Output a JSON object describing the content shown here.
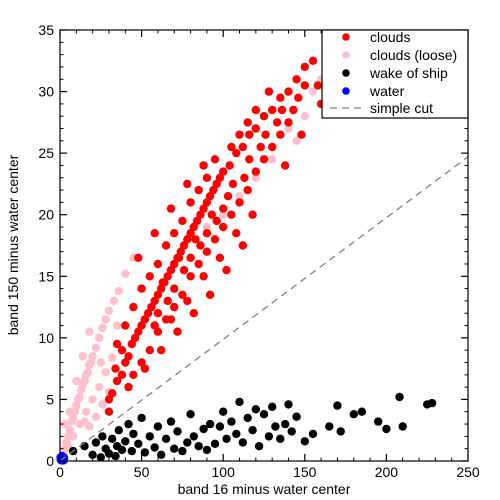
{
  "chart_data": {
    "type": "scatter",
    "xlabel": "band 16 minus water center",
    "ylabel": "band 150 minus water center",
    "xlim": [
      0,
      250
    ],
    "ylim": [
      0,
      35
    ],
    "xticks": [
      0,
      50,
      100,
      150,
      200,
      250
    ],
    "yticks": [
      0,
      5,
      10,
      15,
      20,
      25,
      30,
      35
    ],
    "legend_position": "top-right",
    "legend": [
      "clouds",
      "clouds (loose)",
      "wake of ship",
      "water",
      "simple cut"
    ],
    "series": [
      {
        "name": "clouds (loose)",
        "color": "#ffc0cb",
        "points": [
          [
            2,
            0.5
          ],
          [
            3,
            1.0
          ],
          [
            4,
            1.5
          ],
          [
            5,
            2.0
          ],
          [
            6,
            2.5
          ],
          [
            7,
            3.2
          ],
          [
            8,
            3.5
          ],
          [
            9,
            4.0
          ],
          [
            10,
            4.5
          ],
          [
            11,
            5.0
          ],
          [
            12,
            5.2
          ],
          [
            13,
            5.8
          ],
          [
            14,
            6.2
          ],
          [
            15,
            6.5
          ],
          [
            16,
            7.0
          ],
          [
            17,
            7.2
          ],
          [
            18,
            7.8
          ],
          [
            19,
            8.0
          ],
          [
            20,
            8.5
          ],
          [
            22,
            9.2
          ],
          [
            24,
            10.0
          ],
          [
            26,
            10.8
          ],
          [
            28,
            11.5
          ],
          [
            30,
            12.2
          ],
          [
            33,
            13.0
          ],
          [
            36,
            13.8
          ],
          [
            40,
            15.2
          ],
          [
            45,
            16.5
          ],
          [
            5,
            1.2
          ],
          [
            8,
            2.0
          ],
          [
            12,
            3.0
          ],
          [
            16,
            4.0
          ],
          [
            20,
            5.0
          ],
          [
            24,
            6.0
          ],
          [
            28,
            7.2
          ],
          [
            32,
            8.4
          ],
          [
            18,
            2.8
          ],
          [
            22,
            3.6
          ],
          [
            26,
            4.6
          ],
          [
            30,
            5.6
          ],
          [
            6,
            4.0
          ],
          [
            10,
            6.5
          ],
          [
            14,
            8.5
          ],
          [
            18,
            10.5
          ],
          [
            3,
            3.0
          ],
          [
            15,
            3.2
          ],
          [
            25,
            8.0
          ],
          [
            35,
            11.0
          ],
          [
            100,
            20.0
          ],
          [
            120,
            23.0
          ],
          [
            140,
            27.0
          ],
          [
            150,
            28.0
          ],
          [
            145,
            26.0
          ],
          [
            155,
            30.0
          ],
          [
            160,
            31.0
          ],
          [
            130,
            24.5
          ],
          [
            110,
            21.5
          ],
          [
            90,
            19.0
          ]
        ]
      },
      {
        "name": "clouds",
        "color": "#ff0000",
        "points": [
          [
            30,
            4.0
          ],
          [
            32,
            5.5
          ],
          [
            35,
            6.5
          ],
          [
            38,
            7.0
          ],
          [
            40,
            8.0
          ],
          [
            42,
            8.5
          ],
          [
            44,
            9.5
          ],
          [
            46,
            10.0
          ],
          [
            48,
            10.5
          ],
          [
            50,
            11.0
          ],
          [
            52,
            11.5
          ],
          [
            54,
            12.0
          ],
          [
            56,
            12.5
          ],
          [
            58,
            13.0
          ],
          [
            60,
            13.5
          ],
          [
            62,
            14.0
          ],
          [
            64,
            14.5
          ],
          [
            66,
            15.0
          ],
          [
            68,
            15.5
          ],
          [
            70,
            16.0
          ],
          [
            72,
            16.5
          ],
          [
            74,
            17.0
          ],
          [
            76,
            17.5
          ],
          [
            78,
            18.0
          ],
          [
            80,
            18.5
          ],
          [
            82,
            19.0
          ],
          [
            84,
            19.5
          ],
          [
            86,
            20.0
          ],
          [
            88,
            20.5
          ],
          [
            90,
            21.0
          ],
          [
            92,
            21.5
          ],
          [
            94,
            22.0
          ],
          [
            96,
            22.5
          ],
          [
            98,
            23.0
          ],
          [
            100,
            23.5
          ],
          [
            104,
            24.0
          ],
          [
            108,
            25.0
          ],
          [
            112,
            25.5
          ],
          [
            116,
            26.5
          ],
          [
            120,
            27.0
          ],
          [
            125,
            28.0
          ],
          [
            130,
            28.5
          ],
          [
            135,
            29.5
          ],
          [
            140,
            30.0
          ],
          [
            145,
            31.0
          ],
          [
            150,
            32.0
          ],
          [
            155,
            32.5
          ],
          [
            158,
            30.5
          ],
          [
            45,
            7.0
          ],
          [
            50,
            8.0
          ],
          [
            55,
            9.0
          ],
          [
            60,
            10.5
          ],
          [
            65,
            11.5
          ],
          [
            70,
            12.5
          ],
          [
            75,
            13.5
          ],
          [
            80,
            15.0
          ],
          [
            85,
            16.0
          ],
          [
            90,
            17.0
          ],
          [
            95,
            18.0
          ],
          [
            100,
            19.0
          ],
          [
            105,
            20.0
          ],
          [
            110,
            21.0
          ],
          [
            115,
            22.0
          ],
          [
            120,
            23.5
          ],
          [
            125,
            24.5
          ],
          [
            130,
            25.5
          ],
          [
            135,
            26.5
          ],
          [
            140,
            27.5
          ],
          [
            60,
            16.0
          ],
          [
            65,
            17.5
          ],
          [
            70,
            18.5
          ],
          [
            75,
            19.5
          ],
          [
            80,
            21.0
          ],
          [
            85,
            22.0
          ],
          [
            55,
            15.0
          ],
          [
            50,
            14.0
          ],
          [
            45,
            12.5
          ],
          [
            40,
            11.0
          ],
          [
            35,
            9.5
          ],
          [
            95,
            24.5
          ],
          [
            90,
            23.0
          ],
          [
            105,
            25.5
          ],
          [
            110,
            26.5
          ],
          [
            115,
            27.5
          ],
          [
            120,
            28.5
          ],
          [
            128,
            30.0
          ],
          [
            48,
            16.5
          ],
          [
            58,
            18.5
          ],
          [
            68,
            20.5
          ],
          [
            78,
            22.5
          ],
          [
            88,
            24.0
          ],
          [
            42,
            6.0
          ],
          [
            52,
            7.5
          ],
          [
            62,
            9.0
          ],
          [
            72,
            10.5
          ],
          [
            82,
            12.0
          ],
          [
            92,
            13.5
          ],
          [
            102,
            15.5
          ],
          [
            112,
            17.5
          ],
          [
            60,
            12.0
          ],
          [
            70,
            14.0
          ],
          [
            80,
            16.5
          ],
          [
            90,
            18.5
          ],
          [
            100,
            20.5
          ],
          [
            66,
            13.0
          ],
          [
            76,
            15.5
          ],
          [
            86,
            17.5
          ],
          [
            96,
            19.5
          ],
          [
            106,
            22.5
          ],
          [
            116,
            24.5
          ],
          [
            126,
            26.5
          ],
          [
            136,
            28.5
          ],
          [
            146,
            29.5
          ],
          [
            150,
            30.5
          ],
          [
            63,
            14.5
          ],
          [
            73,
            16.5
          ],
          [
            83,
            18.0
          ],
          [
            93,
            20.0
          ],
          [
            103,
            21.5
          ],
          [
            113,
            23.0
          ],
          [
            123,
            25.5
          ],
          [
            133,
            27.5
          ],
          [
            143,
            28.5
          ],
          [
            38,
            9.0
          ],
          [
            58,
            11.0
          ],
          [
            68,
            11.5
          ],
          [
            78,
            13.0
          ],
          [
            88,
            15.0
          ],
          [
            98,
            16.5
          ],
          [
            30,
            5.0
          ],
          [
            34,
            7.5
          ],
          [
            108,
            18.5
          ],
          [
            118,
            20.0
          ],
          [
            138,
            24.0
          ],
          [
            148,
            26.5
          ],
          [
            160,
            29.0
          ]
        ]
      },
      {
        "name": "wake of ship",
        "color": "#000000",
        "points": [
          [
            8,
            0.8
          ],
          [
            15,
            1.2
          ],
          [
            20,
            0.5
          ],
          [
            22,
            1.5
          ],
          [
            25,
            0.3
          ],
          [
            26,
            2.0
          ],
          [
            28,
            1.0
          ],
          [
            30,
            0.6
          ],
          [
            32,
            1.8
          ],
          [
            34,
            0.4
          ],
          [
            35,
            1.2
          ],
          [
            36,
            2.5
          ],
          [
            38,
            0.9
          ],
          [
            40,
            1.6
          ],
          [
            42,
            3.0
          ],
          [
            44,
            0.8
          ],
          [
            45,
            2.2
          ],
          [
            48,
            1.4
          ],
          [
            50,
            3.5
          ],
          [
            52,
            0.7
          ],
          [
            55,
            2.0
          ],
          [
            58,
            1.1
          ],
          [
            60,
            2.8
          ],
          [
            62,
            0.5
          ],
          [
            65,
            1.8
          ],
          [
            68,
            3.2
          ],
          [
            70,
            1.0
          ],
          [
            72,
            2.4
          ],
          [
            75,
            0.8
          ],
          [
            78,
            1.5
          ],
          [
            80,
            3.8
          ],
          [
            82,
            2.0
          ],
          [
            85,
            1.2
          ],
          [
            88,
            2.6
          ],
          [
            90,
            0.9
          ],
          [
            92,
            3.0
          ],
          [
            95,
            1.4
          ],
          [
            98,
            2.8
          ],
          [
            100,
            4.0
          ],
          [
            102,
            1.8
          ],
          [
            105,
            3.2
          ],
          [
            108,
            2.2
          ],
          [
            110,
            4.8
          ],
          [
            112,
            1.5
          ],
          [
            115,
            3.5
          ],
          [
            118,
            2.5
          ],
          [
            120,
            4.2
          ],
          [
            122,
            1.2
          ],
          [
            125,
            3.8
          ],
          [
            128,
            2.0
          ],
          [
            130,
            4.4
          ],
          [
            132,
            2.8
          ],
          [
            135,
            1.8
          ],
          [
            138,
            3.0
          ],
          [
            140,
            4.6
          ],
          [
            142,
            2.4
          ],
          [
            145,
            3.6
          ],
          [
            150,
            1.6
          ],
          [
            155,
            2.2
          ],
          [
            165,
            2.8
          ],
          [
            170,
            4.5
          ],
          [
            172,
            2.4
          ],
          [
            180,
            3.8
          ],
          [
            185,
            4.0
          ],
          [
            195,
            3.2
          ],
          [
            200,
            2.6
          ],
          [
            208,
            5.2
          ],
          [
            210,
            2.8
          ],
          [
            225,
            4.6
          ],
          [
            228,
            4.7
          ]
        ]
      },
      {
        "name": "water",
        "color": "#0000ff",
        "points": [
          [
            0.5,
            0.1
          ],
          [
            1.0,
            0.2
          ],
          [
            1.5,
            0.15
          ],
          [
            2.0,
            0.3
          ],
          [
            2.5,
            0.25
          ],
          [
            1.2,
            0.4
          ],
          [
            0.8,
            0.05
          ],
          [
            1.8,
            0.1
          ],
          [
            0.3,
            0.3
          ],
          [
            2.2,
            0.05
          ]
        ]
      }
    ],
    "reference_line": {
      "name": "simple cut",
      "style": "dashed",
      "color": "#808080",
      "from": [
        0,
        0
      ],
      "to": [
        250,
        24.7
      ]
    }
  }
}
